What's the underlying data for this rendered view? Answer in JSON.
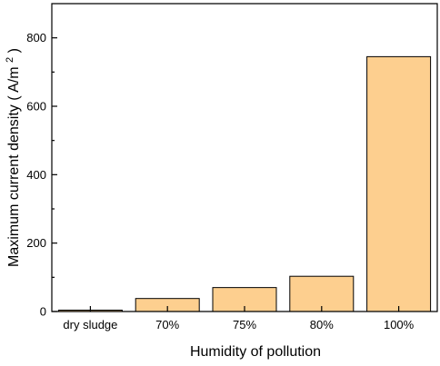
{
  "chart_data": {
    "type": "bar",
    "categories": [
      "dry sludge",
      "70%",
      "75%",
      "80%",
      "100%"
    ],
    "values": [
      4,
      38,
      70,
      103,
      745
    ],
    "xlabel": "Humidity of pollution",
    "ylabel_main": "Maximum current density",
    "ylabel_unit_prefix": "( A/m",
    "ylabel_unit_sup": "2",
    "ylabel_unit_suffix": ")",
    "ylim": [
      0,
      900
    ],
    "yticks": [
      0,
      200,
      400,
      600,
      800
    ],
    "bar_color": "#fdcf8f",
    "grid": false,
    "legend": "none"
  }
}
